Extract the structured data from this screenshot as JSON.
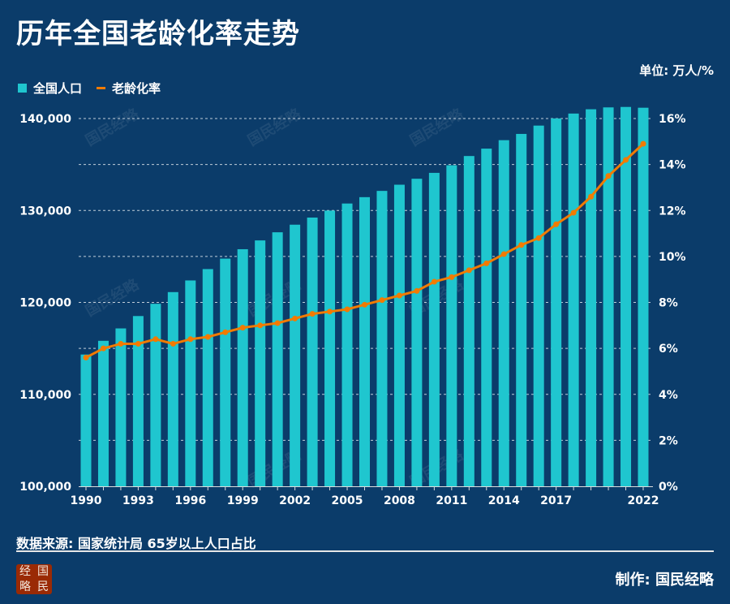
{
  "title": "历年全国老龄化率走势",
  "unit": "单位: 万人/%",
  "legend": [
    {
      "label": "全国人口",
      "color": "#1fc6cf"
    },
    {
      "label": "老龄化率",
      "color": "#f27b00"
    }
  ],
  "watermark": "国民经略",
  "footer": {
    "source": "数据来源: 国家统计局 65岁以上人口占比",
    "credit": "制作: 国民经略",
    "logo_chars": [
      "经",
      "国",
      "略",
      "民"
    ]
  },
  "colors": {
    "background": "#0b3c6a",
    "bar": "#1fc6cf",
    "line": "#f27b00"
  },
  "chart_data": {
    "type": "bar+line",
    "x": [
      1990,
      1991,
      1992,
      1993,
      1994,
      1995,
      1996,
      1997,
      1998,
      1999,
      2000,
      2001,
      2002,
      2003,
      2004,
      2005,
      2006,
      2007,
      2008,
      2009,
      2010,
      2011,
      2012,
      2013,
      2014,
      2015,
      2016,
      2017,
      2018,
      2019,
      2020,
      2021,
      2022
    ],
    "x_tick_labels": [
      "1990",
      "1993",
      "1996",
      "1999",
      "2002",
      "2005",
      "2008",
      "2011",
      "2014",
      "2017",
      "2022"
    ],
    "series": [
      {
        "name": "全国人口",
        "type": "bar",
        "axis": "left",
        "values": [
          114333,
          115823,
          117171,
          118517,
          119850,
          121121,
          122389,
          123626,
          124761,
          125786,
          126743,
          127627,
          128453,
          129227,
          129988,
          130756,
          131448,
          132129,
          132802,
          133450,
          134091,
          134916,
          135922,
          136726,
          137646,
          138326,
          139232,
          140011,
          140541,
          141008,
          141212,
          141260,
          141175
        ]
      },
      {
        "name": "老龄化率",
        "type": "line",
        "axis": "right",
        "values": [
          5.6,
          6.0,
          6.2,
          6.2,
          6.4,
          6.2,
          6.4,
          6.5,
          6.7,
          6.9,
          7.0,
          7.1,
          7.3,
          7.5,
          7.6,
          7.7,
          7.9,
          8.1,
          8.3,
          8.5,
          8.9,
          9.1,
          9.4,
          9.7,
          10.1,
          10.5,
          10.8,
          11.4,
          11.9,
          12.6,
          13.5,
          14.2,
          14.9
        ]
      }
    ],
    "y_left": {
      "range": [
        100000,
        140000
      ],
      "tick_labels": [
        "100,000",
        "110,000",
        "120,000",
        "130,000",
        "140,000"
      ]
    },
    "y_right": {
      "range": [
        0,
        16
      ],
      "tick_labels": [
        "0%",
        "2%",
        "4%",
        "6%",
        "8%",
        "10%",
        "12%",
        "14%",
        "16%"
      ]
    },
    "grid": "dashed horizontal"
  }
}
